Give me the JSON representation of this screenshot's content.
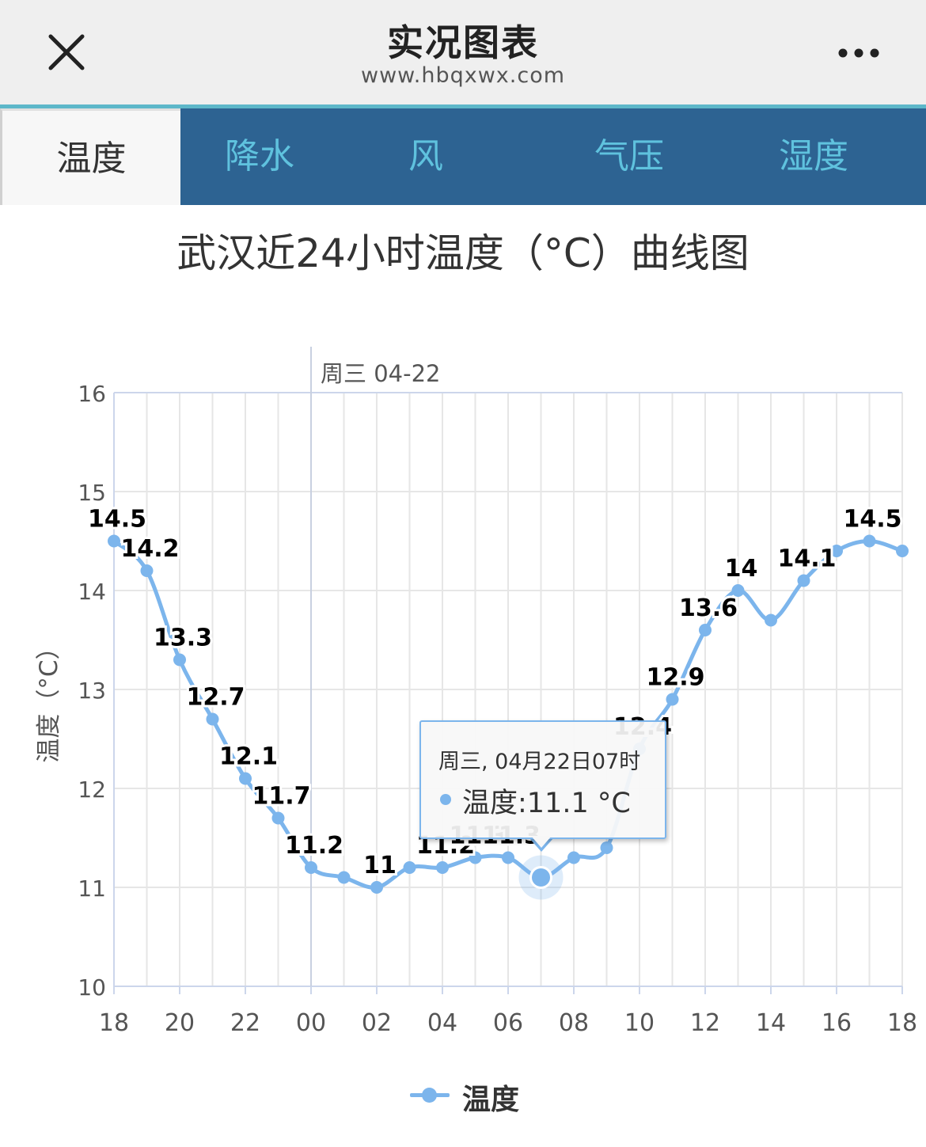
{
  "header": {
    "title": "实况图表",
    "subtitle": "www.hbqxwx.com",
    "close_icon": "close-icon",
    "more_icon": "more-dots-icon"
  },
  "tabs": [
    {
      "label": "温度",
      "active": true
    },
    {
      "label": "降水",
      "active": false
    },
    {
      "label": "风",
      "active": false
    },
    {
      "label": "气压",
      "active": false
    },
    {
      "label": "湿度",
      "active": false
    }
  ],
  "colors": {
    "accent": "#5db7c9",
    "tab_bar": "#2d6392",
    "tab_text": "#5fc2de",
    "series": "#7cb5ec"
  },
  "chart_title": "武汉近24小时温度（°C）曲线图",
  "tooltip": {
    "date": "周三, 04月22日07时",
    "value": "温度:11.1 °C"
  },
  "legend": {
    "label": "温度"
  },
  "chart_data": {
    "type": "line",
    "title": "武汉近24小时温度（°C）曲线图",
    "ylabel": "温度（°C）",
    "xlabel": "",
    "ylim": [
      10,
      16
    ],
    "yticks": [
      "10",
      "11",
      "12",
      "13",
      "14",
      "15",
      "16"
    ],
    "xticks": [
      "18",
      "20",
      "22",
      "00",
      "02",
      "04",
      "06",
      "08",
      "10",
      "12",
      "14",
      "16",
      "18"
    ],
    "day_marker": "周三 04-22",
    "grid": true,
    "legend_position": "bottom",
    "x": [
      "18",
      "19",
      "20",
      "21",
      "22",
      "23",
      "00",
      "01",
      "02",
      "03",
      "04",
      "05",
      "06",
      "07",
      "08",
      "09",
      "10",
      "11",
      "12",
      "13",
      "14",
      "15",
      "16",
      "17",
      "18"
    ],
    "series": [
      {
        "name": "温度",
        "values": [
          14.5,
          14.2,
          13.3,
          12.7,
          12.1,
          11.7,
          11.2,
          11.1,
          11,
          11.2,
          11.2,
          11.3,
          11.3,
          11.1,
          11.3,
          11.4,
          12.4,
          12.9,
          13.6,
          14,
          13.7,
          14.1,
          14.4,
          14.5,
          14.4
        ],
        "labels": [
          "14.5",
          "14.2",
          "13.3",
          "12.7",
          "12.1",
          "11.7",
          "11.2",
          "",
          "11",
          "",
          "11.2",
          "11.3",
          "11.3",
          "",
          "",
          "",
          "12.4",
          "12.9",
          "13.6",
          "14",
          "",
          "14.1",
          "",
          "14.5",
          ""
        ]
      }
    ]
  }
}
